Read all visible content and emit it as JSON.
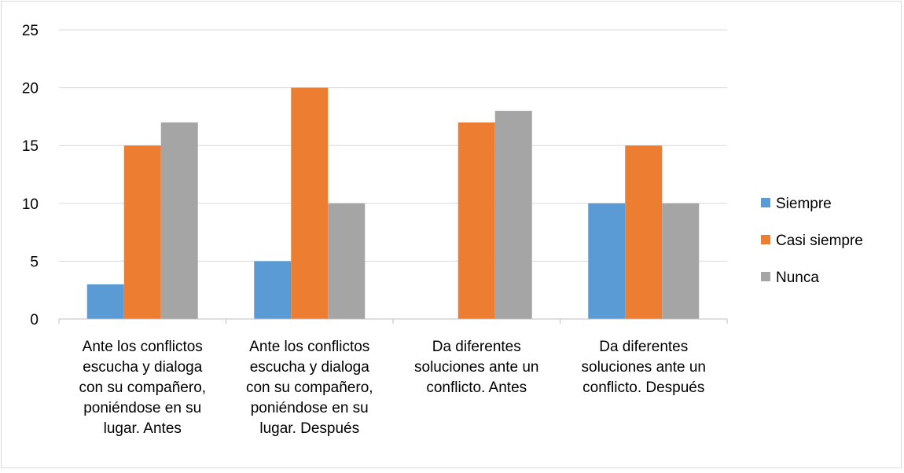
{
  "chart_data": {
    "type": "bar",
    "categories": [
      [
        "Ante los conflictos",
        "escucha y dialoga",
        "con su compañero,",
        "poniéndose en su",
        "lugar. Antes"
      ],
      [
        "Ante los conflictos",
        "escucha y dialoga",
        "con su compañero,",
        "poniéndose en su",
        "lugar. Después"
      ],
      [
        "Da diferentes",
        "soluciones ante un",
        "conflicto. Antes"
      ],
      [
        "Da diferentes",
        "soluciones ante un",
        "conflicto. Después"
      ]
    ],
    "series": [
      {
        "name": "Siempre",
        "color": "#5b9bd5",
        "values": [
          3,
          5,
          0,
          10
        ]
      },
      {
        "name": "Casi siempre",
        "color": "#ed7d31",
        "values": [
          15,
          20,
          17,
          15
        ]
      },
      {
        "name": "Nunca",
        "color": "#a5a5a5",
        "values": [
          17,
          10,
          18,
          10
        ]
      }
    ],
    "y_ticks": [
      "0",
      "5",
      "10",
      "15",
      "20",
      "25"
    ],
    "ylim": [
      0,
      25
    ],
    "grid": true,
    "legend": "right",
    "title": "",
    "xlabel": "",
    "ylabel": ""
  }
}
